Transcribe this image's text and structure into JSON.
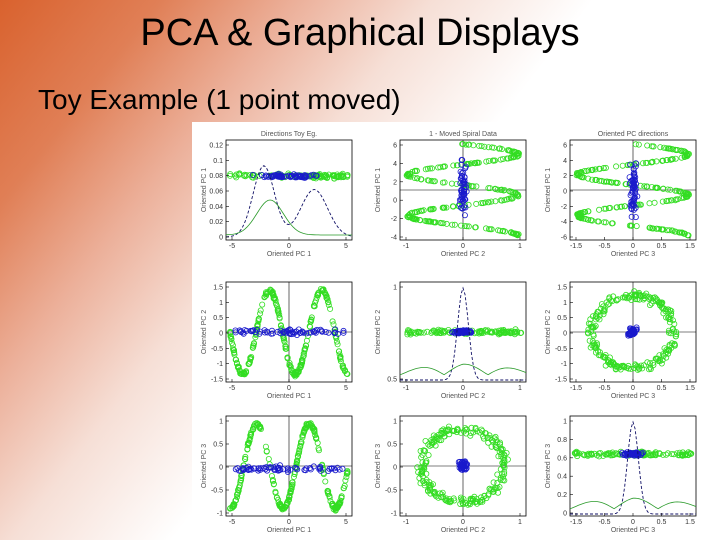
{
  "slide": {
    "title": "PCA & Graphical Displays",
    "subtitle": "Toy Example   (1 point moved)"
  },
  "figure": {
    "titles": {
      "p00": "Directions Toy Eg.",
      "p01": "1 - Moved Spiral Data",
      "p02": "Oriented PC directions"
    },
    "labels": {
      "x_pc1": "Oriented PC 1",
      "x_pc2": "Oriented PC 2",
      "x_pc3": "Oriented PC 3",
      "y_pc1": "Oriented PC 1",
      "y_pc2": "Oriented PC 2",
      "y_pc3": "Oriented PC 3"
    },
    "ticks": {
      "p00_y": [
        "0.12",
        "0.1",
        "0.08",
        "0.06",
        "0.04",
        "0.02",
        "0"
      ],
      "p00_x": [
        "-5",
        "0",
        "5"
      ],
      "p01_y": [
        "6",
        "4",
        "2",
        "0",
        "-2",
        "-4"
      ],
      "p01_x": [
        "-1",
        "0",
        "1"
      ],
      "p02_y": [
        "6",
        "4",
        "2",
        "0",
        "-2",
        "-4",
        "-6"
      ],
      "p02_x": [
        "-1.5",
        "-0.5",
        "0",
        "0.5",
        "1.5"
      ],
      "p10_y": [
        "1.5",
        "1",
        "0.5",
        "0",
        "-0.5",
        "-1",
        "-1.5"
      ],
      "p10_x": [
        "-5",
        "0",
        "5"
      ],
      "p11_y": [
        "1",
        "0.5"
      ],
      "p11_x": [
        "-1",
        "0",
        "1"
      ],
      "p12_y": [
        "1.5",
        "1",
        "0.5",
        "0",
        "-0.5",
        "-1",
        "-1.5"
      ],
      "p12_x": [
        "-1.5",
        "-0.5",
        "0",
        "0.5",
        "1.5"
      ],
      "p20_y": [
        "1",
        "0.5",
        "0",
        "-0.5",
        "-1"
      ],
      "p20_x": [
        "-5",
        "0",
        "5"
      ],
      "p21_y": [
        "1",
        "0.5",
        "0",
        "-0.5",
        "-1"
      ],
      "p21_x": [
        "-1",
        "0",
        "1"
      ],
      "p22_y": [
        "1",
        "0.8",
        "0.6",
        "0.4",
        "0.2",
        "0"
      ],
      "p22_x": [
        "-1.5",
        "-0.5",
        "0",
        "0.5",
        "1.5"
      ]
    },
    "colors": {
      "green": "#33dd22",
      "blue": "#1a1acc",
      "dark": "#111166",
      "density": "#2a9a2a"
    }
  }
}
